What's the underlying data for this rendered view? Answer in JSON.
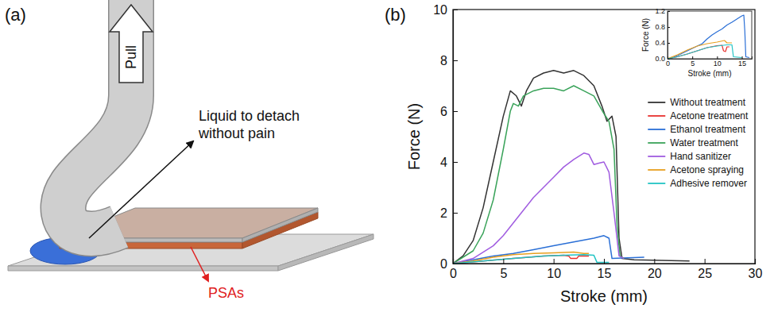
{
  "diagram": {
    "panel": "(a)",
    "pull": "Pull",
    "liquid_label": [
      "Liquid to detach",
      "without pain"
    ],
    "psa_label": "PSAs"
  },
  "chart_data": [
    {
      "type": "line",
      "panel": "(b)",
      "x_label": "Stroke (mm)",
      "y_label": "Force (N)",
      "xlim": [
        0,
        30
      ],
      "xticks": [
        0,
        5,
        10,
        15,
        20,
        25,
        30
      ],
      "ylim": [
        0,
        10
      ],
      "yticks": [
        0,
        2,
        4,
        6,
        8,
        10
      ],
      "legend": "right",
      "series": [
        {
          "name": "Without treatment",
          "color": "#333333",
          "x": [
            0,
            1,
            2,
            3,
            4,
            5,
            5.7,
            6.3,
            6.8,
            7.3,
            8,
            9,
            10,
            11,
            12,
            13,
            14,
            14.8,
            15.3,
            15.8,
            16.2,
            16.5,
            16.8,
            18,
            23.5
          ],
          "values": [
            0,
            0.3,
            0.9,
            2.2,
            4,
            5.8,
            6.8,
            6.6,
            6.2,
            6.8,
            7.3,
            7.5,
            7.6,
            7.5,
            7.6,
            7.4,
            7,
            6.2,
            5.6,
            5.8,
            5,
            1,
            0.2,
            0.15,
            0.1
          ]
        },
        {
          "name": "Acetone treatment",
          "color": "#e8312f",
          "x": [
            0,
            3,
            6,
            9,
            11,
            11.5,
            11.7,
            12.3,
            12.5,
            13.5
          ],
          "values": [
            0,
            0.1,
            0.2,
            0.3,
            0.33,
            0.3,
            0.2,
            0.2,
            0.3,
            0.3
          ]
        },
        {
          "name": "Ethanol treatment",
          "color": "#2a6fd6",
          "x": [
            0,
            2,
            4,
            6,
            8,
            10,
            12,
            14,
            15,
            15.5,
            15.8,
            19
          ],
          "values": [
            0,
            0.15,
            0.3,
            0.4,
            0.55,
            0.7,
            0.85,
            1,
            1.1,
            1,
            0.2,
            0.25
          ]
        },
        {
          "name": "Water treatment",
          "color": "#3aa35a",
          "x": [
            0,
            2,
            3,
            4,
            5,
            5.7,
            6,
            6.5,
            7,
            8,
            9,
            10,
            11,
            12,
            13,
            14,
            15,
            15.5,
            16,
            16.3,
            16.6,
            17
          ],
          "values": [
            0,
            0.5,
            1.2,
            2.5,
            4.5,
            6,
            6.3,
            6.2,
            6.6,
            6.8,
            6.9,
            6.9,
            6.8,
            7,
            6.8,
            6.6,
            5.9,
            5.6,
            4.5,
            1.5,
            0.3,
            0.2
          ]
        },
        {
          "name": "Hand sanitizer",
          "color": "#a05ce0",
          "x": [
            0,
            2,
            4,
            5,
            6,
            7,
            8,
            9,
            10,
            11,
            12,
            13,
            13.5,
            14,
            14.5,
            15,
            15.5,
            16,
            16.5,
            17
          ],
          "values": [
            0,
            0.2,
            0.7,
            1.1,
            1.6,
            2.1,
            2.6,
            3,
            3.4,
            3.8,
            4.1,
            4.35,
            4.3,
            3.9,
            3.95,
            4,
            3.6,
            2,
            0.3,
            0.2
          ]
        },
        {
          "name": "Acetone spraying",
          "color": "#e8a020",
          "x": [
            0,
            2,
            4,
            6,
            8,
            10,
            12,
            13,
            13.5
          ],
          "values": [
            0,
            0.1,
            0.25,
            0.35,
            0.4,
            0.42,
            0.45,
            0.4,
            0.4
          ]
        },
        {
          "name": "Adhesive remover",
          "color": "#22c4c4",
          "x": [
            0,
            3,
            6,
            9,
            11,
            13,
            14,
            14.3,
            15.5
          ],
          "values": [
            0,
            0.1,
            0.2,
            0.3,
            0.33,
            0.35,
            0.33,
            0.05,
            0.05
          ]
        }
      ]
    },
    {
      "type": "line",
      "x_label": "Stroke (mm)",
      "y_label": "Force (N)",
      "xlim": [
        0,
        17
      ],
      "xticks": [
        0,
        5,
        10,
        15
      ],
      "ylim": [
        0,
        1.2
      ],
      "yticks": [
        {
          "value": 0,
          "label": "0.0"
        },
        0.4,
        0.8,
        1.2
      ],
      "series": [
        {
          "color": "#2a6fd6",
          "x": [
            0,
            1,
            2,
            3,
            4,
            5,
            6,
            7,
            8,
            9,
            10,
            11,
            12,
            13,
            14,
            15,
            15.4,
            15.6,
            15.8,
            16.5
          ],
          "values": [
            0,
            0.03,
            0.08,
            0.14,
            0.2,
            0.26,
            0.32,
            0.38,
            0.5,
            0.6,
            0.68,
            0.75,
            0.85,
            0.92,
            1,
            1.08,
            1.1,
            0.7,
            0.05,
            0.03
          ]
        },
        {
          "color": "#e8312f",
          "x": [
            0,
            2,
            4,
            6,
            8,
            10,
            11,
            11.3,
            11.7,
            12,
            12.5
          ],
          "values": [
            0,
            0.05,
            0.12,
            0.2,
            0.28,
            0.33,
            0.34,
            0.2,
            0.18,
            0.3,
            0.3
          ]
        },
        {
          "color": "#e8a020",
          "x": [
            0,
            2,
            4,
            6,
            8,
            10,
            11.5,
            12,
            13
          ],
          "values": [
            0,
            0.1,
            0.22,
            0.32,
            0.38,
            0.42,
            0.46,
            0.4,
            0.4
          ]
        },
        {
          "color": "#22c4c4",
          "x": [
            0,
            2,
            4,
            6,
            8,
            10,
            12,
            13,
            13.3,
            15
          ],
          "values": [
            0,
            0.05,
            0.12,
            0.2,
            0.28,
            0.32,
            0.35,
            0.35,
            0.05,
            0.03
          ]
        }
      ]
    }
  ]
}
